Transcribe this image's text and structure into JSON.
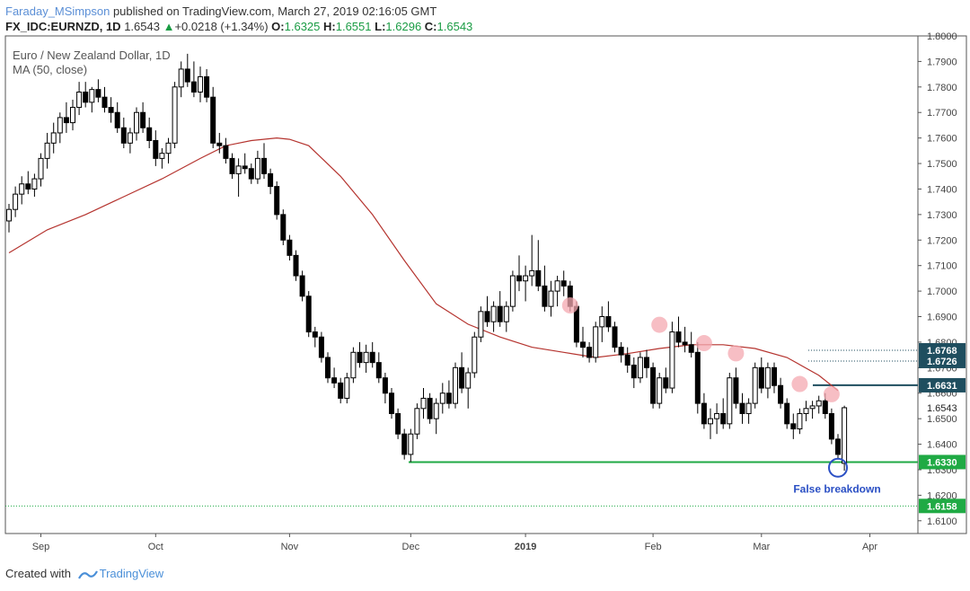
{
  "header": {
    "author": "Faraday_MSimpson",
    "published": "published on TradingView.com, March 27, 2019 02:16:05 GMT",
    "symbol": "FX_IDC:EURNZD, 1D",
    "last": "1.6543",
    "change": "+0.0218 (+1.34%)",
    "o_label": "O:",
    "o": "1.6325",
    "h_label": "H:",
    "h": "1.6551",
    "l_label": "L:",
    "l": "1.6296",
    "c_label": "C:",
    "c": "1.6543"
  },
  "footer": {
    "created_with": "Created with",
    "brand": "TradingView"
  },
  "chart_data": {
    "type": "candlestick",
    "title": "Euro / New Zealand Dollar, 1D",
    "indicator": "MA (50, close)",
    "ylim": [
      1.605,
      1.8
    ],
    "ytick_labels": [
      "1.8000",
      "1.7900",
      "1.7800",
      "1.7700",
      "1.7600",
      "1.7500",
      "1.7400",
      "1.7300",
      "1.7200",
      "1.7100",
      "1.7000",
      "1.6900",
      "1.6800",
      "1.6700",
      "1.6600",
      "1.6500",
      "1.6400",
      "1.6300",
      "1.6200",
      "1.6100"
    ],
    "x_labels": [
      "Sep",
      "Oct",
      "Nov",
      "Dec",
      "2019",
      "Feb",
      "Mar",
      "Apr"
    ],
    "candles": [
      [
        1.7275,
        1.7342,
        1.723,
        1.732
      ],
      [
        1.732,
        1.741,
        1.729,
        1.738
      ],
      [
        1.738,
        1.745,
        1.734,
        1.742
      ],
      [
        1.742,
        1.747,
        1.738,
        1.74
      ],
      [
        1.74,
        1.746,
        1.737,
        1.744
      ],
      [
        1.744,
        1.754,
        1.741,
        1.752
      ],
      [
        1.752,
        1.762,
        1.748,
        1.758
      ],
      [
        1.758,
        1.766,
        1.754,
        1.762
      ],
      [
        1.762,
        1.77,
        1.758,
        1.768
      ],
      [
        1.768,
        1.774,
        1.762,
        1.766
      ],
      [
        1.766,
        1.775,
        1.763,
        1.772
      ],
      [
        1.772,
        1.782,
        1.769,
        1.778
      ],
      [
        1.778,
        1.782,
        1.772,
        1.774
      ],
      [
        1.774,
        1.78,
        1.77,
        1.779
      ],
      [
        1.779,
        1.783,
        1.774,
        1.776
      ],
      [
        1.776,
        1.78,
        1.77,
        1.772
      ],
      [
        1.772,
        1.776,
        1.766,
        1.77
      ],
      [
        1.77,
        1.774,
        1.762,
        1.764
      ],
      [
        1.764,
        1.768,
        1.756,
        1.758
      ],
      [
        1.758,
        1.764,
        1.754,
        1.762
      ],
      [
        1.762,
        1.772,
        1.759,
        1.77
      ],
      [
        1.77,
        1.774,
        1.762,
        1.764
      ],
      [
        1.764,
        1.768,
        1.756,
        1.759
      ],
      [
        1.759,
        1.763,
        1.749,
        1.752
      ],
      [
        1.752,
        1.756,
        1.748,
        1.754
      ],
      [
        1.754,
        1.76,
        1.75,
        1.758
      ],
      [
        1.758,
        1.782,
        1.756,
        1.78
      ],
      [
        1.78,
        1.79,
        1.776,
        1.787
      ],
      [
        1.787,
        1.793,
        1.78,
        1.782
      ],
      [
        1.782,
        1.79,
        1.776,
        1.778
      ],
      [
        1.778,
        1.788,
        1.774,
        1.784
      ],
      [
        1.784,
        1.787,
        1.774,
        1.776
      ],
      [
        1.776,
        1.78,
        1.756,
        1.758
      ],
      [
        1.758,
        1.762,
        1.754,
        1.757
      ],
      [
        1.757,
        1.76,
        1.75,
        1.752
      ],
      [
        1.752,
        1.754,
        1.744,
        1.746
      ],
      [
        1.746,
        1.752,
        1.737,
        1.749
      ],
      [
        1.749,
        1.754,
        1.746,
        1.748
      ],
      [
        1.748,
        1.75,
        1.742,
        1.744
      ],
      [
        1.744,
        1.755,
        1.742,
        1.752
      ],
      [
        1.752,
        1.758,
        1.744,
        1.746
      ],
      [
        1.746,
        1.748,
        1.738,
        1.741
      ],
      [
        1.741,
        1.743,
        1.728,
        1.73
      ],
      [
        1.73,
        1.732,
        1.718,
        1.72
      ],
      [
        1.72,
        1.722,
        1.712,
        1.714
      ],
      [
        1.714,
        1.716,
        1.704,
        1.706
      ],
      [
        1.706,
        1.708,
        1.696,
        1.698
      ],
      [
        1.698,
        1.7,
        1.682,
        1.684
      ],
      [
        1.684,
        1.686,
        1.678,
        1.682
      ],
      [
        1.682,
        1.684,
        1.672,
        1.674
      ],
      [
        1.674,
        1.676,
        1.664,
        1.666
      ],
      [
        1.666,
        1.67,
        1.662,
        1.664
      ],
      [
        1.664,
        1.666,
        1.656,
        1.658
      ],
      [
        1.658,
        1.668,
        1.656,
        1.666
      ],
      [
        1.666,
        1.678,
        1.664,
        1.676
      ],
      [
        1.676,
        1.68,
        1.67,
        1.672
      ],
      [
        1.672,
        1.679,
        1.668,
        1.676
      ],
      [
        1.676,
        1.68,
        1.67,
        1.672
      ],
      [
        1.672,
        1.676,
        1.664,
        1.666
      ],
      [
        1.666,
        1.668,
        1.656,
        1.66
      ],
      [
        1.66,
        1.662,
        1.65,
        1.652
      ],
      [
        1.652,
        1.654,
        1.642,
        1.644
      ],
      [
        1.644,
        1.646,
        1.634,
        1.636
      ],
      [
        1.636,
        1.646,
        1.633,
        1.644
      ],
      [
        1.644,
        1.656,
        1.642,
        1.654
      ],
      [
        1.654,
        1.662,
        1.65,
        1.658
      ],
      [
        1.658,
        1.66,
        1.648,
        1.65
      ],
      [
        1.65,
        1.658,
        1.644,
        1.656
      ],
      [
        1.656,
        1.664,
        1.652,
        1.66
      ],
      [
        1.66,
        1.665,
        1.654,
        1.656
      ],
      [
        1.656,
        1.672,
        1.654,
        1.67
      ],
      [
        1.67,
        1.676,
        1.66,
        1.662
      ],
      [
        1.662,
        1.67,
        1.654,
        1.668
      ],
      [
        1.668,
        1.684,
        1.666,
        1.682
      ],
      [
        1.682,
        1.694,
        1.68,
        1.692
      ],
      [
        1.692,
        1.698,
        1.686,
        1.688
      ],
      [
        1.688,
        1.696,
        1.684,
        1.694
      ],
      [
        1.694,
        1.7,
        1.686,
        1.688
      ],
      [
        1.688,
        1.696,
        1.684,
        1.694
      ],
      [
        1.694,
        1.708,
        1.692,
        1.706
      ],
      [
        1.706,
        1.714,
        1.7,
        1.704
      ],
      [
        1.704,
        1.71,
        1.696,
        1.706
      ],
      [
        1.706,
        1.722,
        1.702,
        1.708
      ],
      [
        1.708,
        1.72,
        1.7,
        1.702
      ],
      [
        1.702,
        1.71,
        1.692,
        1.694
      ],
      [
        1.694,
        1.704,
        1.69,
        1.7
      ],
      [
        1.7,
        1.706,
        1.694,
        1.704
      ],
      [
        1.704,
        1.708,
        1.698,
        1.702
      ],
      [
        1.702,
        1.704,
        1.692,
        1.694
      ],
      [
        1.694,
        1.696,
        1.678,
        1.68
      ],
      [
        1.68,
        1.686,
        1.674,
        1.678
      ],
      [
        1.678,
        1.68,
        1.672,
        1.674
      ],
      [
        1.674,
        1.688,
        1.672,
        1.686
      ],
      [
        1.686,
        1.694,
        1.68,
        1.69
      ],
      [
        1.69,
        1.696,
        1.684,
        1.686
      ],
      [
        1.686,
        1.688,
        1.676,
        1.678
      ],
      [
        1.678,
        1.68,
        1.672,
        1.675
      ],
      [
        1.675,
        1.678,
        1.668,
        1.671
      ],
      [
        1.671,
        1.674,
        1.662,
        1.666
      ],
      [
        1.666,
        1.676,
        1.664,
        1.674
      ],
      [
        1.674,
        1.677,
        1.666,
        1.67
      ],
      [
        1.67,
        1.672,
        1.654,
        1.656
      ],
      [
        1.656,
        1.668,
        1.654,
        1.666
      ],
      [
        1.666,
        1.67,
        1.66,
        1.662
      ],
      [
        1.662,
        1.688,
        1.66,
        1.684
      ],
      [
        1.684,
        1.69,
        1.678,
        1.68
      ],
      [
        1.68,
        1.686,
        1.676,
        1.679
      ],
      [
        1.679,
        1.684,
        1.674,
        1.676
      ],
      [
        1.676,
        1.68,
        1.652,
        1.656
      ],
      [
        1.656,
        1.66,
        1.646,
        1.648
      ],
      [
        1.648,
        1.654,
        1.642,
        1.65
      ],
      [
        1.65,
        1.656,
        1.644,
        1.652
      ],
      [
        1.652,
        1.658,
        1.646,
        1.648
      ],
      [
        1.648,
        1.668,
        1.646,
        1.666
      ],
      [
        1.666,
        1.67,
        1.654,
        1.656
      ],
      [
        1.656,
        1.66,
        1.648,
        1.652
      ],
      [
        1.652,
        1.658,
        1.648,
        1.656
      ],
      [
        1.656,
        1.672,
        1.654,
        1.67
      ],
      [
        1.67,
        1.674,
        1.66,
        1.662
      ],
      [
        1.662,
        1.672,
        1.658,
        1.67
      ],
      [
        1.67,
        1.672,
        1.66,
        1.663
      ],
      [
        1.663,
        1.666,
        1.654,
        1.656
      ],
      [
        1.656,
        1.658,
        1.646,
        1.648
      ],
      [
        1.648,
        1.652,
        1.642,
        1.646
      ],
      [
        1.646,
        1.654,
        1.644,
        1.652
      ],
      [
        1.652,
        1.657,
        1.649,
        1.654
      ],
      [
        1.654,
        1.657,
        1.65,
        1.655
      ],
      [
        1.655,
        1.659,
        1.652,
        1.657
      ],
      [
        1.657,
        1.66,
        1.65,
        1.652
      ],
      [
        1.652,
        1.654,
        1.64,
        1.642
      ],
      [
        1.642,
        1.644,
        1.634,
        1.636
      ],
      [
        1.6325,
        1.6551,
        1.6296,
        1.6543
      ]
    ],
    "ma50": [
      [
        0,
        1.715
      ],
      [
        6,
        1.724
      ],
      [
        12,
        1.73
      ],
      [
        18,
        1.737
      ],
      [
        24,
        1.744
      ],
      [
        30,
        1.752
      ],
      [
        34,
        1.757
      ],
      [
        38,
        1.759
      ],
      [
        42,
        1.76
      ],
      [
        44,
        1.7595
      ],
      [
        47,
        1.757
      ],
      [
        52,
        1.745
      ],
      [
        57,
        1.73
      ],
      [
        62,
        1.712
      ],
      [
        67,
        1.695
      ],
      [
        72,
        1.687
      ],
      [
        77,
        1.682
      ],
      [
        82,
        1.678
      ],
      [
        87,
        1.676
      ],
      [
        92,
        1.674
      ],
      [
        97,
        1.6755
      ],
      [
        102,
        1.6775
      ],
      [
        107,
        1.679
      ],
      [
        112,
        1.679
      ],
      [
        117,
        1.6775
      ],
      [
        122,
        1.674
      ],
      [
        127,
        1.667
      ],
      [
        130,
        1.661
      ]
    ],
    "levels": [
      {
        "label": "1.6768",
        "value": 1.6768,
        "style": "dotted",
        "color": "#1f4e5f"
      },
      {
        "label": "1.6726",
        "value": 1.6726,
        "style": "dotted",
        "color": "#1f4e5f"
      },
      {
        "label": "1.6631",
        "value": 1.6631,
        "style": "solid",
        "color": "#1f4e5f"
      },
      {
        "label": "1.6330",
        "value": 1.633,
        "style": "solid",
        "color": "#1faa44"
      },
      {
        "label": "1.6158",
        "value": 1.6158,
        "style": "dotted",
        "color": "#1faa44"
      }
    ],
    "price_label": {
      "label": "1.6543",
      "value": 1.6543
    },
    "lower_highs": [
      [
        88,
        1.6944
      ],
      [
        102,
        1.6868
      ],
      [
        109,
        1.6796
      ],
      [
        114,
        1.6756
      ],
      [
        124,
        1.6636
      ],
      [
        129,
        1.6596
      ]
    ],
    "false_breakdown": {
      "label": "False breakdown",
      "index": 130,
      "value": 1.6308
    }
  }
}
